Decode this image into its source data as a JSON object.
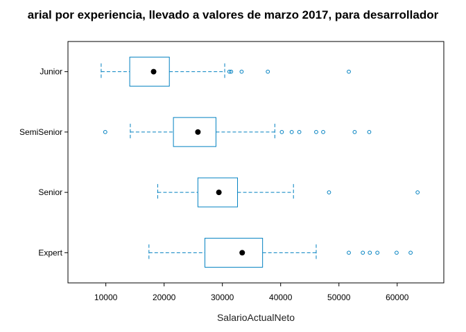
{
  "chart_data": {
    "type": "boxplot",
    "orientation": "horizontal",
    "title": "arial por experiencia, llevado a valores de marzo 2017, para desarrollador",
    "xlabel": "SalarioActualNeto",
    "ylabel": "",
    "xlim": [
      3500,
      68000
    ],
    "xticks": [
      10000,
      20000,
      30000,
      40000,
      50000,
      60000
    ],
    "xtick_labels": [
      "10000",
      "20000",
      "30000",
      "40000",
      "50000",
      "60000"
    ],
    "grid": false,
    "legend": "none",
    "colors": {
      "box": "#0080c0",
      "median": "#000000",
      "outlier": "#0080c0",
      "frame": "#000000"
    },
    "categories": [
      "Junior",
      "SemiSenior",
      "Senior",
      "Expert"
    ],
    "series": [
      {
        "category": "Junior",
        "whisker_low": 9200,
        "q1": 14100,
        "median": 18200,
        "q3": 20900,
        "whisker_high": 30400,
        "outliers": [
          31200,
          31500,
          33300,
          37800,
          51700
        ]
      },
      {
        "category": "SemiSenior",
        "whisker_low": 14200,
        "q1": 21600,
        "median": 25800,
        "q3": 28900,
        "whisker_high": 39000,
        "outliers": [
          9900,
          40200,
          41900,
          43200,
          46100,
          47300,
          52700,
          55200
        ]
      },
      {
        "category": "Senior",
        "whisker_low": 18900,
        "q1": 25800,
        "median": 29400,
        "q3": 32600,
        "whisker_high": 42200,
        "outliers": [
          48300,
          63500
        ]
      },
      {
        "category": "Expert",
        "whisker_low": 17400,
        "q1": 27000,
        "median": 33400,
        "q3": 36900,
        "whisker_high": 46100,
        "outliers": [
          51700,
          54100,
          55300,
          56600,
          59900,
          62300
        ]
      }
    ]
  }
}
